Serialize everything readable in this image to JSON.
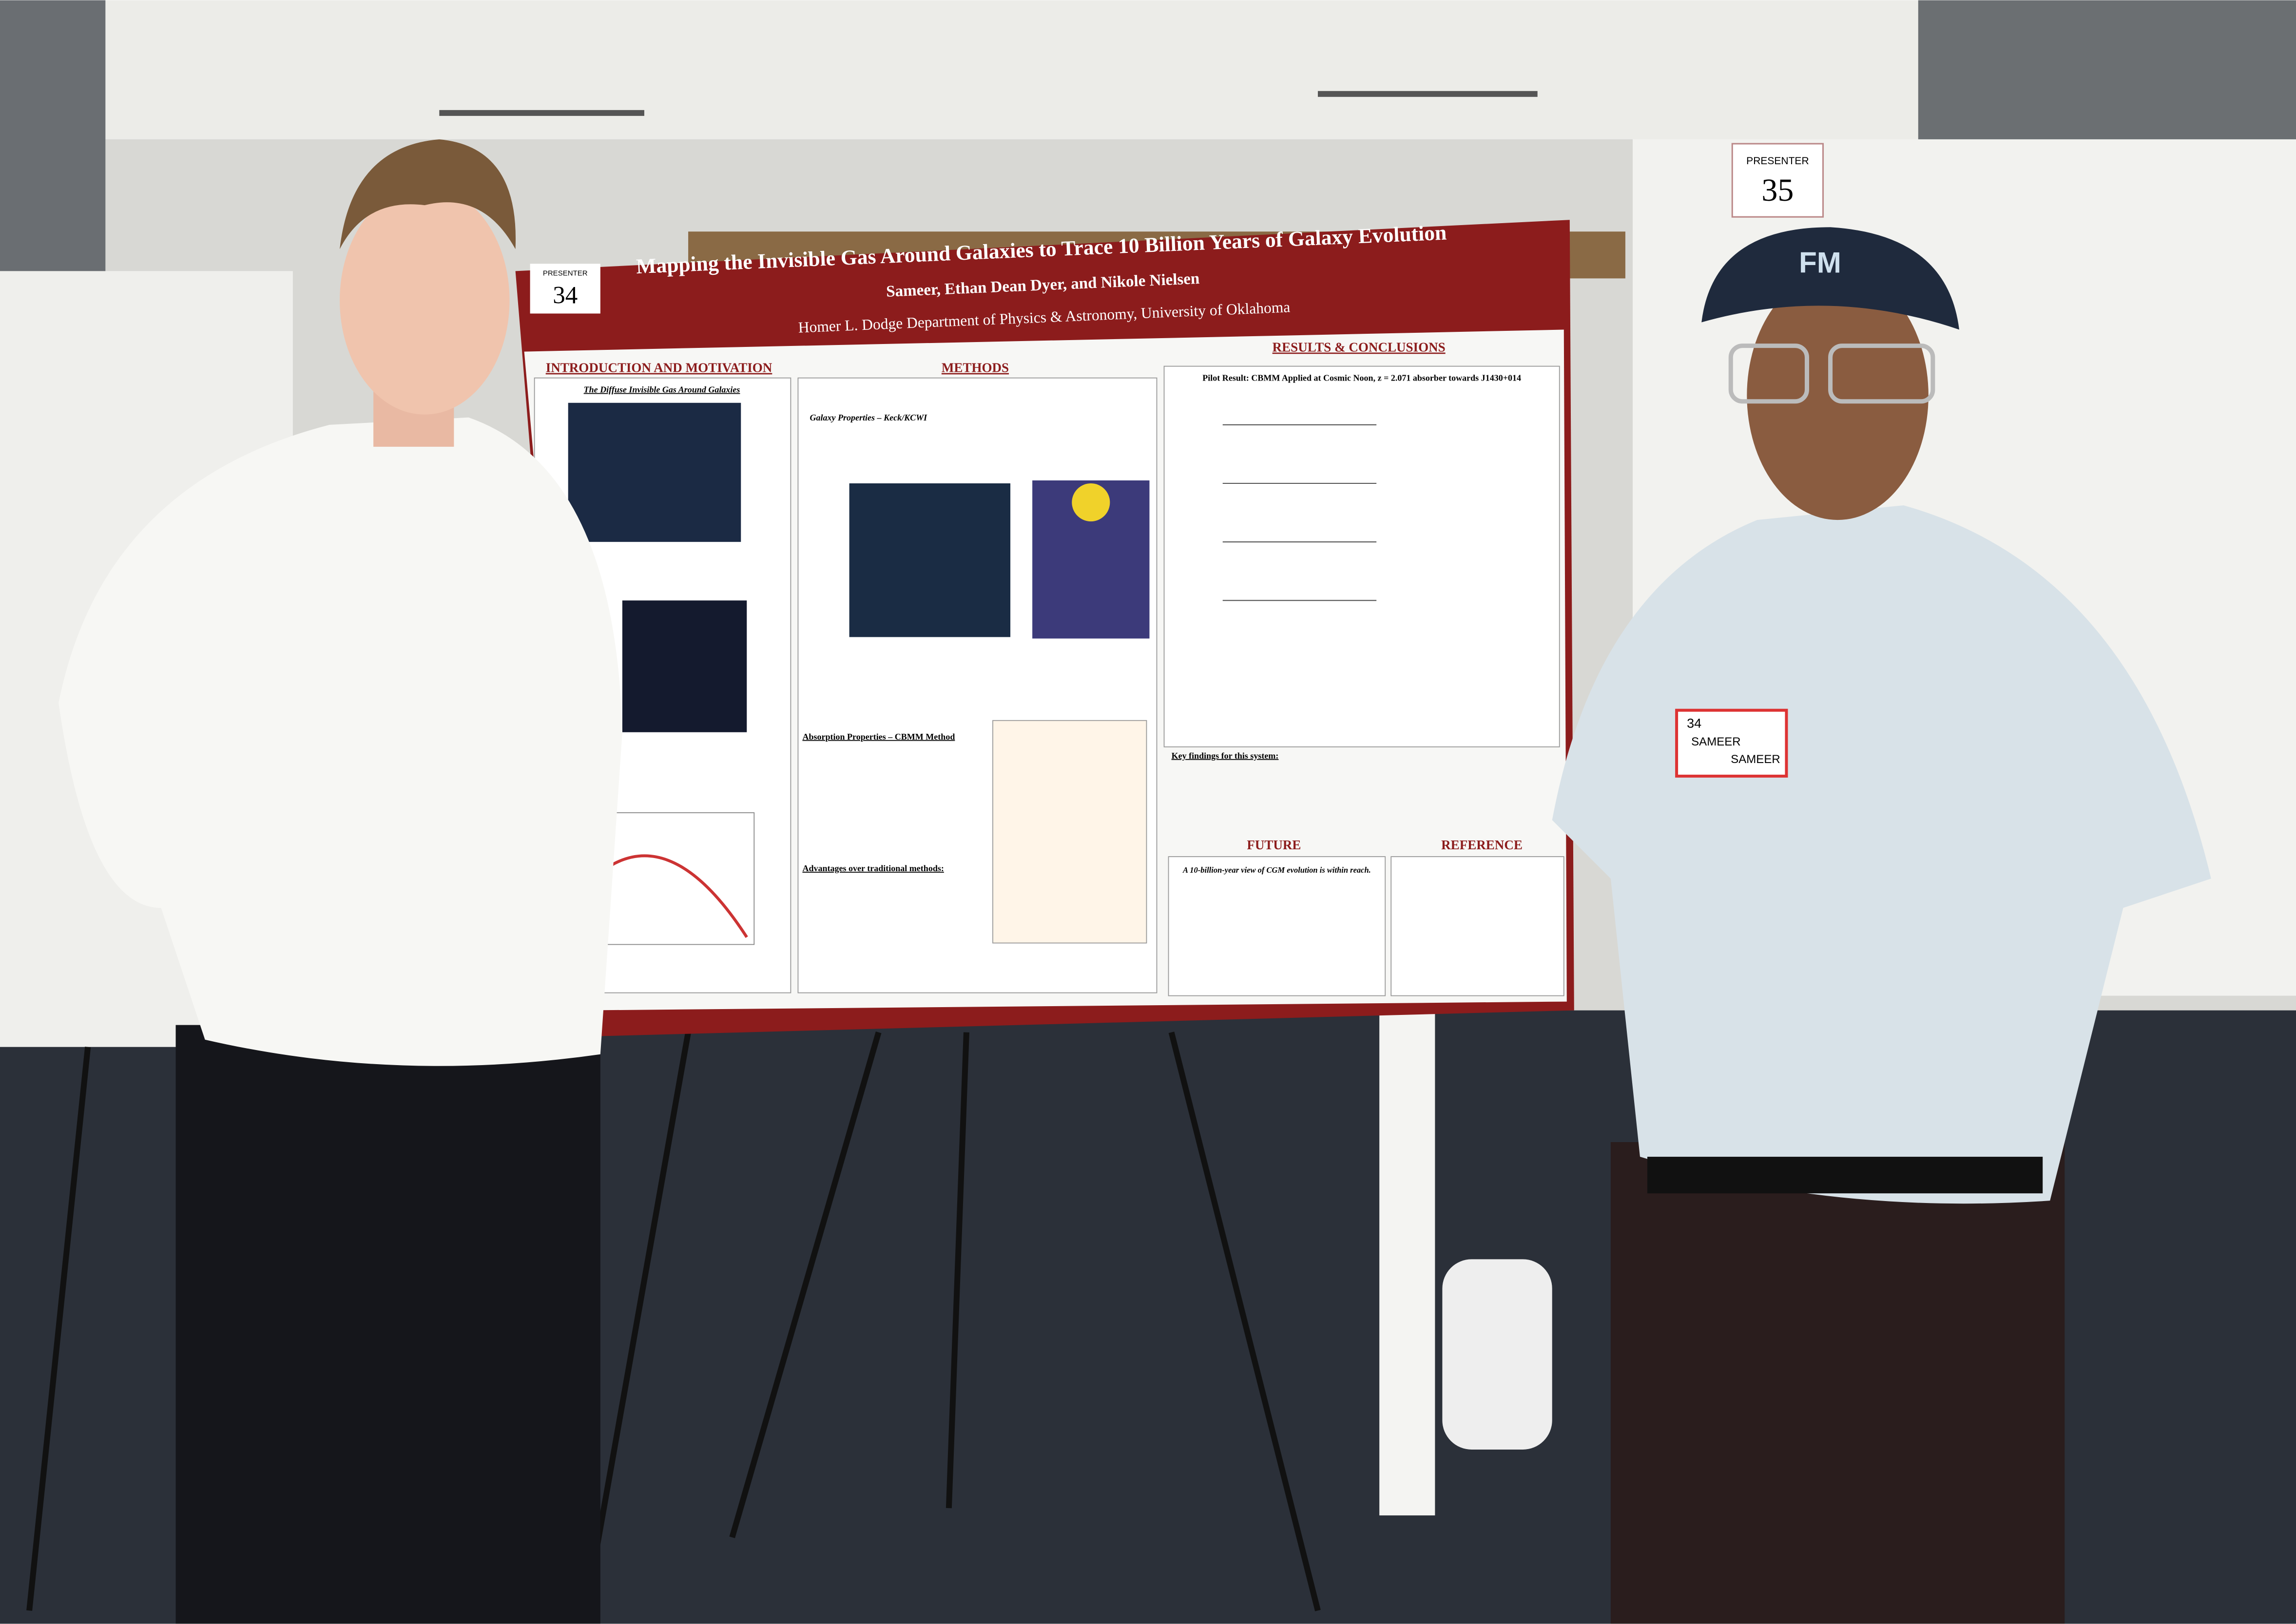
{
  "presenter_cards": [
    {
      "label": "PRESENTER",
      "number": "34"
    },
    {
      "label": "PRESENTER",
      "number": "35"
    }
  ],
  "poster": {
    "title": "Mapping the Invisible Gas Around Galaxies to Trace 10 Billion Years of Galaxy Evolution",
    "authors": "Sameer, Ethan Dean Dyer, and Nikole Nielsen",
    "affiliation": "Homer L. Dodge Department of Physics & Astronomy, University of Oklahoma",
    "sections": [
      "INTRODUCTION AND MOTIVATION",
      "METHODS",
      "RESULTS & CONCLUSIONS",
      "FUTURE",
      "REFERENCE"
    ],
    "subsections": [
      "The Diffuse Invisible Gas Around Galaxies",
      "Galaxy Properties – Keck/KCWI",
      "Absorption Properties – CBMM Method",
      "Advantages over traditional methods:",
      "Pilot Result: CBMM Applied at Cosmic Noon, z = 2.071 absorber towards J1430+014",
      "Key findings for this system:",
      "A 10-billion-year view of CGM evolution is within reach."
    ]
  },
  "cap_logo": "FM",
  "name_tag": {
    "number": "34",
    "lines": [
      "SAMEER",
      "SAMEER"
    ]
  }
}
